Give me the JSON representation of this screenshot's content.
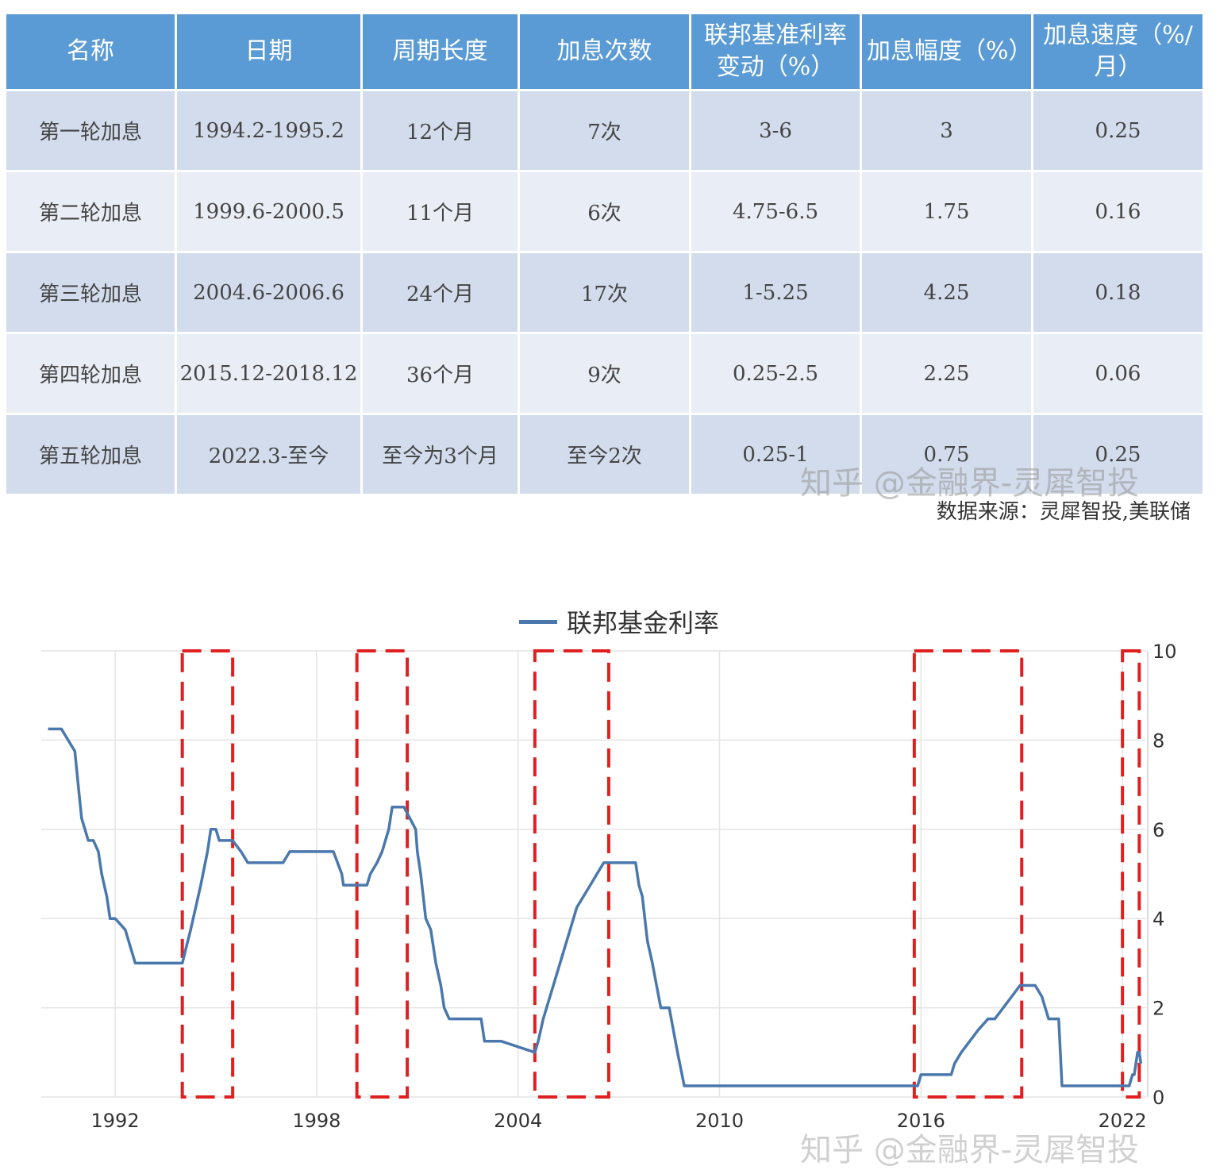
{
  "table": {
    "headers": [
      "名称",
      "日期",
      "周期长度",
      "加息次数",
      "联邦基准利率变动（%）",
      "加息幅度（%）",
      "加息速度（%/月）"
    ],
    "rows": [
      [
        "第一轮加息",
        "1994.2-1995.2",
        "12个月",
        "7次",
        "3-6",
        "3",
        "0.25"
      ],
      [
        "第二轮加息",
        "1999.6-2000.5",
        "11个月",
        "6次",
        "4.75-6.5",
        "1.75",
        "0.16"
      ],
      [
        "第三轮加息",
        "2004.6-2006.6",
        "24个月",
        "17次",
        "1-5.25",
        "4.25",
        "0.18"
      ],
      [
        "第四轮加息",
        "2015.12-2018.12",
        "36个月",
        "9次",
        "0.25-2.5",
        "2.25",
        "0.06"
      ],
      [
        "第五轮加息",
        "2022.3-至今",
        "至今为3个月",
        "至今2次",
        "0.25-1",
        "0.75",
        "0.25"
      ]
    ]
  },
  "watermark": "知乎 @金融界-灵犀智投",
  "source": "数据来源：灵犀智投,美联储",
  "chart_data": {
    "type": "line",
    "series": [
      {
        "name": "联邦基金利率",
        "color": "#4a78ad",
        "x": [
          1990.0,
          1990.4,
          1990.6,
          1990.8,
          1990.9,
          1991.0,
          1991.1,
          1991.2,
          1991.35,
          1991.5,
          1991.6,
          1991.75,
          1991.85,
          1991.95,
          1992.0,
          1992.3,
          1992.5,
          1992.6,
          1992.7,
          1992.85,
          1993.0,
          1993.5,
          1994.0,
          1994.08,
          1994.25,
          1994.4,
          1994.55,
          1994.75,
          1994.85,
          1995.0,
          1995.1,
          1995.5,
          1995.75,
          1995.95,
          1996.0,
          1997.0,
          1997.2,
          1997.3,
          1998.5,
          1998.75,
          1998.8,
          1998.9,
          1999.0,
          1999.5,
          1999.6,
          1999.8,
          1999.95,
          2000.15,
          2000.25,
          2000.45,
          2000.6,
          2000.95,
          2001.0,
          2001.1,
          2001.25,
          2001.4,
          2001.55,
          2001.7,
          2001.8,
          2001.95,
          2002.0,
          2002.9,
          2003.0,
          2003.5,
          2004.5,
          2004.6,
          2004.75,
          2004.95,
          2005.15,
          2005.35,
          2005.55,
          2005.75,
          2005.95,
          2006.15,
          2006.35,
          2006.55,
          2006.6,
          2007.5,
          2007.6,
          2007.7,
          2007.85,
          2008.0,
          2008.25,
          2008.5,
          2008.75,
          2008.95,
          2009.0,
          2015.9,
          2016.0,
          2016.9,
          2017.0,
          2017.2,
          2017.45,
          2017.7,
          2018.0,
          2018.2,
          2018.45,
          2018.7,
          2018.95,
          2019.0,
          2019.4,
          2019.6,
          2019.8,
          2020.1,
          2020.2,
          2022.2,
          2022.3,
          2022.35,
          2022.45,
          2022.5,
          2022.55
        ],
        "values": [
          8.25,
          8.25,
          8.0,
          7.75,
          7.0,
          6.25,
          6.0,
          5.75,
          5.75,
          5.5,
          5.0,
          4.5,
          4.0,
          4.0,
          4.0,
          3.75,
          3.25,
          3.0,
          3.0,
          3.0,
          3.0,
          3.0,
          3.0,
          3.25,
          3.75,
          4.25,
          4.75,
          5.5,
          6.0,
          6.0,
          5.75,
          5.75,
          5.5,
          5.25,
          5.25,
          5.25,
          5.5,
          5.5,
          5.5,
          5.0,
          4.75,
          4.75,
          4.75,
          4.75,
          5.0,
          5.25,
          5.5,
          6.0,
          6.5,
          6.5,
          6.5,
          6.0,
          5.5,
          5.0,
          4.0,
          3.75,
          3.0,
          2.5,
          2.0,
          1.75,
          1.75,
          1.75,
          1.25,
          1.25,
          1.0,
          1.25,
          1.75,
          2.25,
          2.75,
          3.25,
          3.75,
          4.25,
          4.5,
          4.75,
          5.0,
          5.25,
          5.25,
          5.25,
          4.75,
          4.5,
          3.5,
          3.0,
          2.0,
          2.0,
          1.0,
          0.25,
          0.25,
          0.25,
          0.5,
          0.5,
          0.75,
          1.0,
          1.25,
          1.5,
          1.75,
          1.75,
          2.0,
          2.25,
          2.5,
          2.5,
          2.5,
          2.25,
          1.75,
          1.75,
          0.25,
          0.25,
          0.5,
          0.5,
          1.0,
          1.0,
          0.75
        ]
      }
    ],
    "xticks": [
      "1992",
      "1998",
      "2004",
      "2010",
      "2016",
      "2022"
    ],
    "yticks": [
      "0",
      "2",
      "4",
      "6",
      "8",
      "10"
    ],
    "xlim": [
      1989.8,
      2022.8
    ],
    "ylim": [
      0,
      10
    ],
    "y_axis_side": "right",
    "grid": true,
    "legend_position": "top-center",
    "highlight_periods": [
      [
        1994.0,
        1995.5
      ],
      [
        1999.2,
        2000.7
      ],
      [
        2004.5,
        2006.7
      ],
      [
        2015.8,
        2019.0
      ],
      [
        2022.0,
        2022.5
      ]
    ],
    "highlight_color": "#e02020"
  }
}
